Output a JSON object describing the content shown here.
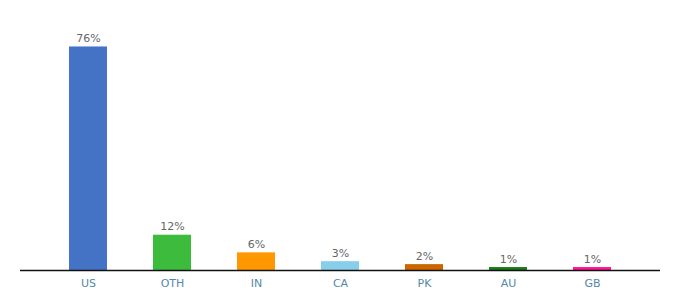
{
  "chart_data": {
    "type": "bar",
    "categories": [
      "US",
      "OTH",
      "IN",
      "CA",
      "PK",
      "AU",
      "GB"
    ],
    "values": [
      76,
      12,
      6,
      3,
      2,
      1,
      1
    ],
    "value_labels": [
      "76%",
      "12%",
      "6%",
      "3%",
      "2%",
      "1%",
      "1%"
    ],
    "colors": [
      "#4472c4",
      "#3dbb3d",
      "#ff9800",
      "#87ceeb",
      "#cc6600",
      "#1a7a1a",
      "#ff1493"
    ],
    "ylim": [
      0,
      85
    ],
    "data_labels": true,
    "tick_labels": "x",
    "grid": false
  }
}
